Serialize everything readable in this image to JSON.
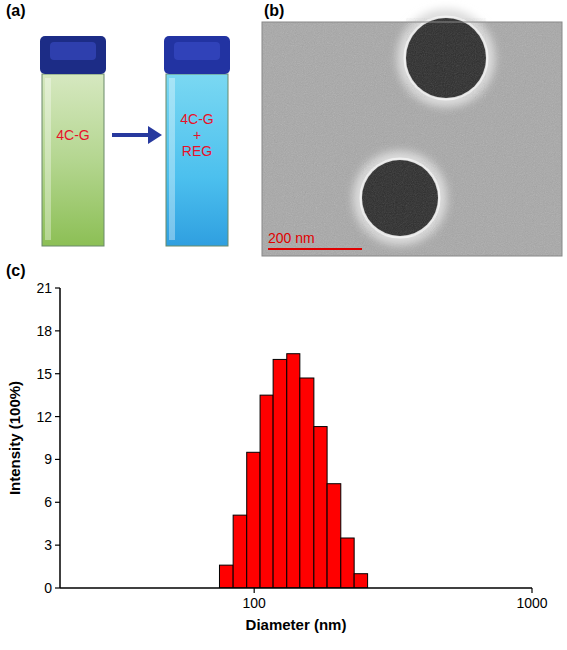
{
  "panel_a": {
    "label": "(a)",
    "cuvettes": [
      {
        "lines": [
          "4C-G"
        ]
      },
      {
        "lines": [
          "4C-G",
          "+",
          "REG"
        ]
      }
    ]
  },
  "panel_b": {
    "label": "(b)",
    "scale_bar": "200 nm"
  },
  "panel_c": {
    "label": "(c)"
  },
  "chart_data": {
    "type": "histogram",
    "x_label": "Diameter (nm)",
    "y_label": "Intensity (100%)",
    "bins": [
      75,
      84,
      94,
      105,
      117,
      131,
      146,
      164,
      183,
      205,
      229,
      256
    ],
    "counts": [
      1.6,
      5.1,
      9.5,
      13.5,
      16.0,
      16.4,
      14.7,
      11.3,
      7.3,
      3.5,
      1.0
    ],
    "color": "#ff0000",
    "xlim": [
      20,
      1000
    ],
    "xticks": [
      100,
      1000
    ],
    "ylim": [
      0,
      21
    ],
    "yticks": [
      0,
      3,
      6,
      9,
      12,
      15,
      18,
      21
    ],
    "log": "x",
    "grid": false
  }
}
